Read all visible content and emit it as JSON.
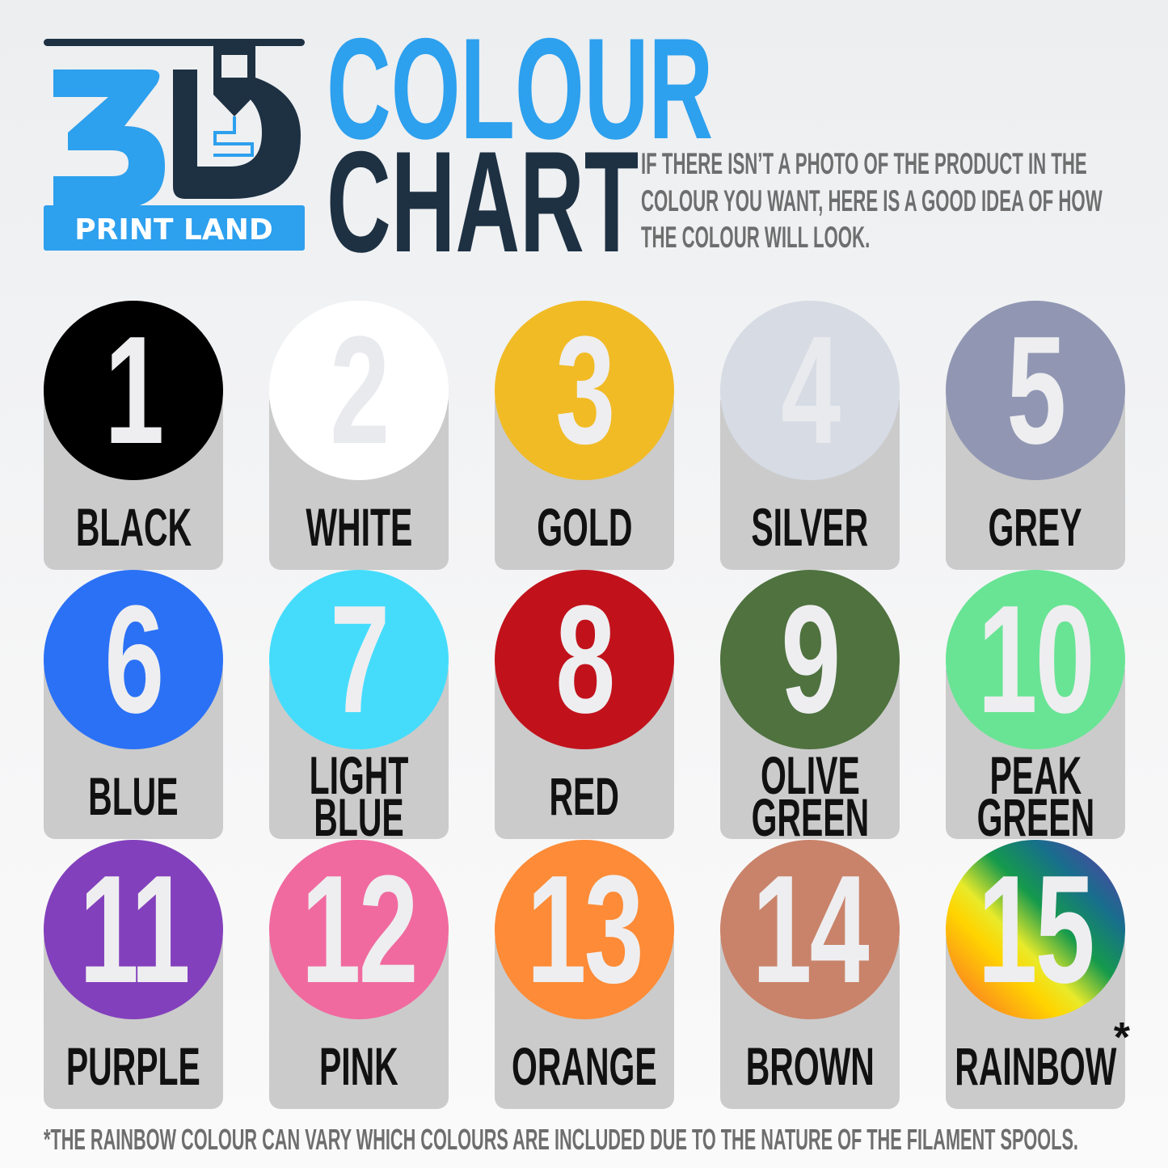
{
  "logo": {
    "text_3d": "3D",
    "text_sub": "PRINT LAND"
  },
  "header": {
    "title_line1": "COLOUR",
    "title_line2": "CHART",
    "intro": "IF THERE ISN’T A PHOTO OF THE PRODUCT IN THE COLOUR YOU WANT, HERE IS A GOOD IDEA OF HOW THE COLOUR WILL LOOK."
  },
  "colors": [
    {
      "number": "1",
      "name": "BLACK",
      "hex": "#000000"
    },
    {
      "number": "2",
      "name": "WHITE",
      "hex": "#ffffff"
    },
    {
      "number": "3",
      "name": "GOLD",
      "hex": "#f1bb26"
    },
    {
      "number": "4",
      "name": "SILVER",
      "hex": "#d6dbe4"
    },
    {
      "number": "5",
      "name": "GREY",
      "hex": "#9197b3"
    },
    {
      "number": "6",
      "name": "BLUE",
      "hex": "#2b71f5"
    },
    {
      "number": "7",
      "name": "LIGHT\nBLUE",
      "hex": "#45dcfc"
    },
    {
      "number": "8",
      "name": "RED",
      "hex": "#c1121c"
    },
    {
      "number": "9",
      "name": "OLIVE\nGREEN",
      "hex": "#4f723f"
    },
    {
      "number": "10",
      "name": "PEAK\nGREEN",
      "hex": "#69e494"
    },
    {
      "number": "11",
      "name": "PURPLE",
      "hex": "#8340bc"
    },
    {
      "number": "12",
      "name": "PINK",
      "hex": "#f06a9f"
    },
    {
      "number": "13",
      "name": "ORANGE",
      "hex": "#fd8b37"
    },
    {
      "number": "14",
      "name": "BROWN",
      "hex": "#c9836a"
    },
    {
      "number": "15",
      "name": "RAINBOW",
      "hex": "rainbow",
      "asterisk": "*"
    }
  ],
  "footer": "*THE RAINBOW COLOUR CAN VARY WHICH COLOURS ARE INCLUDED DUE TO THE NATURE OF THE FILAMENT SPOOLS."
}
